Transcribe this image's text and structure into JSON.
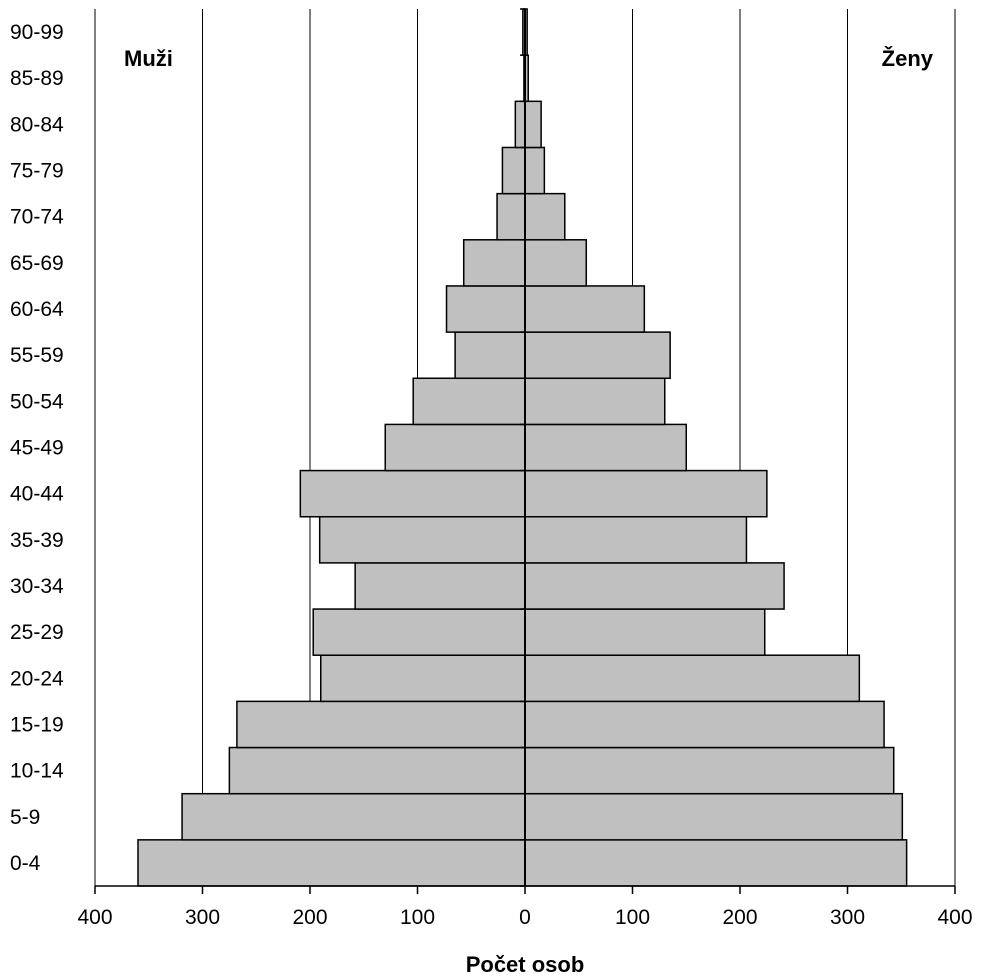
{
  "chart_data": {
    "type": "bar",
    "orientation": "horizontal",
    "subtype": "population-pyramid",
    "categories": [
      "0-4",
      "5-9",
      "10-14",
      "15-19",
      "20-24",
      "25-29",
      "30-34",
      "35-39",
      "40-44",
      "45-49",
      "50-54",
      "55-59",
      "60-64",
      "65-69",
      "70-74",
      "75-79",
      "80-84",
      "85-89",
      "90-99"
    ],
    "series": [
      {
        "name": "Muži",
        "side": "left",
        "values": [
          360,
          319,
          275,
          268,
          190,
          197,
          158,
          191,
          209,
          130,
          104,
          65,
          73,
          57,
          26,
          21,
          9,
          1,
          2
        ]
      },
      {
        "name": "Ženy",
        "side": "right",
        "values": [
          355,
          351,
          343,
          334,
          311,
          223,
          241,
          206,
          225,
          150,
          130,
          135,
          111,
          57,
          37,
          18,
          15,
          3,
          2
        ]
      }
    ],
    "xlabel": "Počet osob",
    "ylabel": "",
    "xlim": [
      -400,
      400
    ],
    "x_tick_values": [
      -400,
      -300,
      -200,
      -100,
      0,
      100,
      200,
      300,
      400
    ],
    "x_tick_labels": [
      "400",
      "300",
      "200",
      "100",
      "0",
      "100",
      "200",
      "300",
      "400"
    ],
    "grid": {
      "vertical": true,
      "horizontal": false
    },
    "colors": {
      "bar_fill": "#c0c0c0",
      "bar_stroke": "#000000",
      "grid": "#000000"
    },
    "annotations": {
      "left": "Muži",
      "right": "Ženy"
    }
  }
}
